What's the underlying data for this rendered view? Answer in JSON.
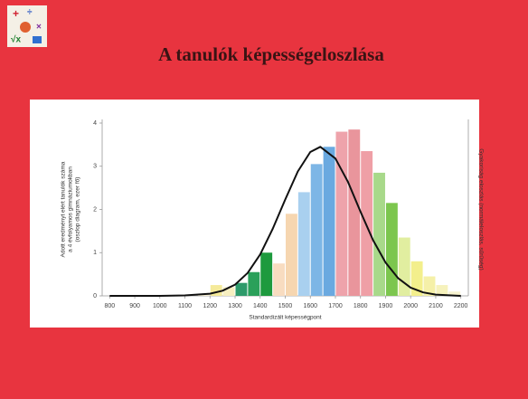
{
  "title": "A tanulók képességeloszlása",
  "chart_data": {
    "type": "histogram",
    "xlabel": "Standardizált képességpont",
    "ylabel": [
      "Adott eredményt elért tanulók száma",
      "a 4 évfolyamos gimnáziumokban",
      "(oszlop diagram, ezer fő)"
    ],
    "y2label": "Gyakoriság eloszlás (normáleloszlás, sűrűség)",
    "bins": [
      1150,
      1200,
      1250,
      1300,
      1350,
      1400,
      1450,
      1500,
      1550,
      1600,
      1650,
      1700,
      1750,
      1800,
      1850,
      1900,
      1950,
      2000,
      2050,
      2100,
      2150,
      2200
    ],
    "values": [
      0.05,
      0.25,
      0.2,
      0.3,
      0.55,
      1.0,
      0.75,
      1.9,
      2.4,
      3.05,
      3.45,
      3.8,
      3.85,
      3.35,
      2.85,
      2.15,
      1.35,
      0.8,
      0.45,
      0.25,
      0.1
    ],
    "colors": [
      "#f3ecd0",
      "#f5ea9a",
      "#f7efc0",
      "#2d9a6a",
      "#2aa05a",
      "#1e9a3e",
      "#f8dcc0",
      "#f6d6b0",
      "#a9d0ef",
      "#7db6e6",
      "#6aa9e0",
      "#eea3ab",
      "#e9959c",
      "#ef9fa6",
      "#a8d98a",
      "#7cc64e",
      "#e1eea0",
      "#f3ef8c",
      "#f5f0a8",
      "#f6f2bc",
      "#f7f3d0"
    ],
    "curve": {
      "x": [
        800,
        900,
        1000,
        1100,
        1200,
        1250,
        1300,
        1350,
        1400,
        1450,
        1500,
        1550,
        1600,
        1640,
        1700,
        1750,
        1800,
        1850,
        1900,
        1950,
        2000,
        2050,
        2100,
        2200
      ],
      "values": [
        0,
        0,
        0,
        0.01,
        0.05,
        0.12,
        0.26,
        0.53,
        0.96,
        1.55,
        2.23,
        2.88,
        3.33,
        3.45,
        3.18,
        2.64,
        1.95,
        1.29,
        0.77,
        0.41,
        0.19,
        0.08,
        0.03,
        0
      ],
      "color": "#111111"
    },
    "xlim": [
      770,
      2230
    ],
    "xticks": [
      800,
      900,
      1000,
      1100,
      1200,
      1300,
      1400,
      1500,
      1600,
      1700,
      1800,
      1900,
      2000,
      2100,
      2200
    ],
    "ylim": [
      0,
      4
    ],
    "yticks": [
      0,
      1,
      2,
      3,
      4
    ]
  }
}
